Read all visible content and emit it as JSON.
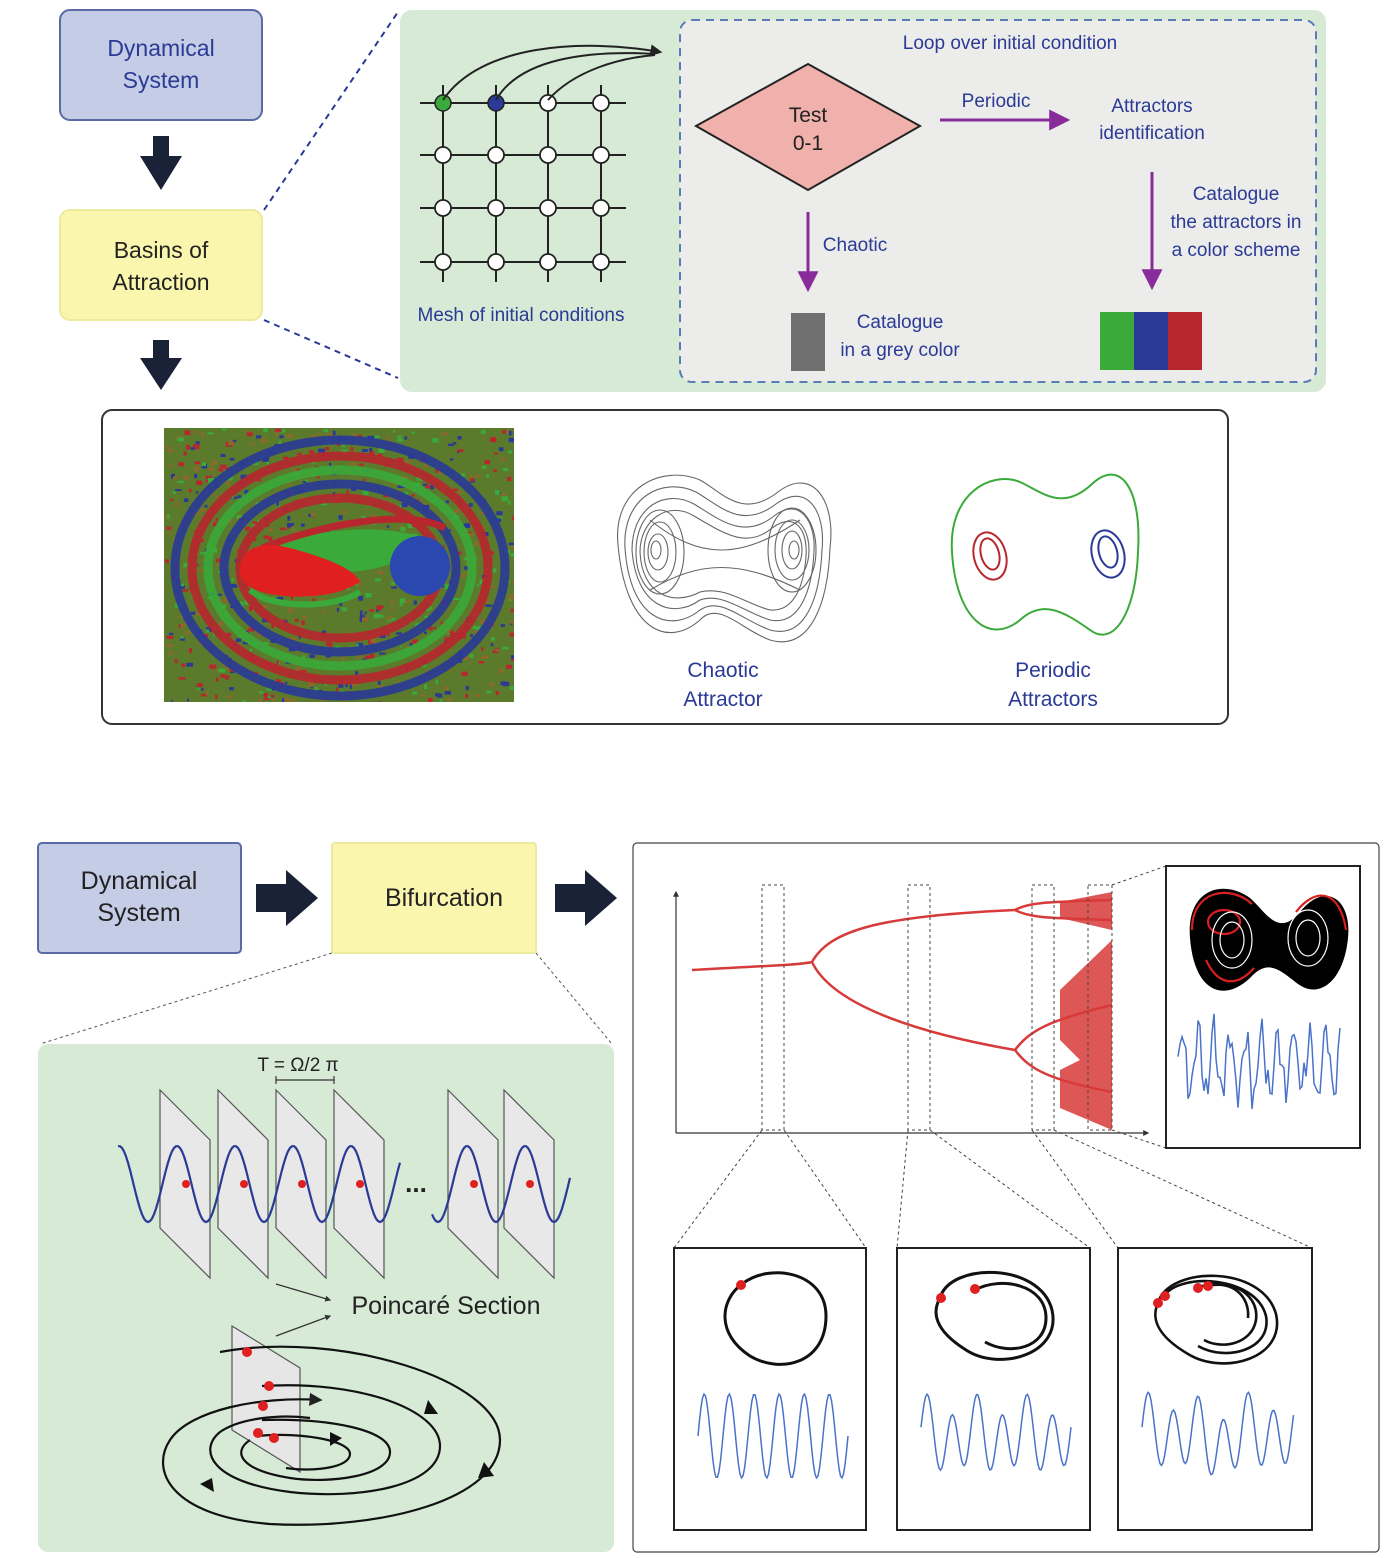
{
  "top": {
    "dynamical_system": [
      "Dynamical",
      "System"
    ],
    "basins": [
      "Basins of",
      "Attraction"
    ],
    "mesh_label": "Mesh of initial conditions",
    "loop_label": "Loop over initial condition",
    "test": [
      "Test",
      "0-1"
    ],
    "periodic": "Periodic",
    "attractors_id": [
      "Attractors",
      "identification"
    ],
    "chaotic": "Chaotic",
    "catalogue_grey": [
      "Catalogue",
      "in a grey color"
    ],
    "catalogue_colors": [
      "Catalogue",
      "the attractors in",
      "a color scheme"
    ],
    "chaotic_attractor": [
      "Chaotic",
      "Attractor"
    ],
    "periodic_attractors": [
      "Periodic",
      "Attractors"
    ]
  },
  "bottom": {
    "dynamical_system": [
      "Dynamical",
      "System"
    ],
    "bifurcation": "Bifurcation",
    "period_formula": "T = Ω/2 π",
    "ellipsis": "...",
    "poincare": "Poincaré Section"
  },
  "colors": {
    "blue_box_fill": "#c5cce6",
    "blue_box_stroke": "#5a6aa8",
    "yellow_box_fill": "#fbf6ae",
    "green_panel": "#d6ead6",
    "inner_panel": "#ececea",
    "diamond": "#f0b0ab",
    "purple_arrow": "#8a2b9b",
    "text_blue": "#2a3a96",
    "attractor_green": "#3aaa3a",
    "attractor_blue": "#2a3a96",
    "attractor_red": "#b8262e",
    "grey_swatch": "#707070",
    "bifurcation_red": "#d83a3a",
    "signal_blue": "#4a72c8",
    "dark_arrow": "#1a2238"
  }
}
